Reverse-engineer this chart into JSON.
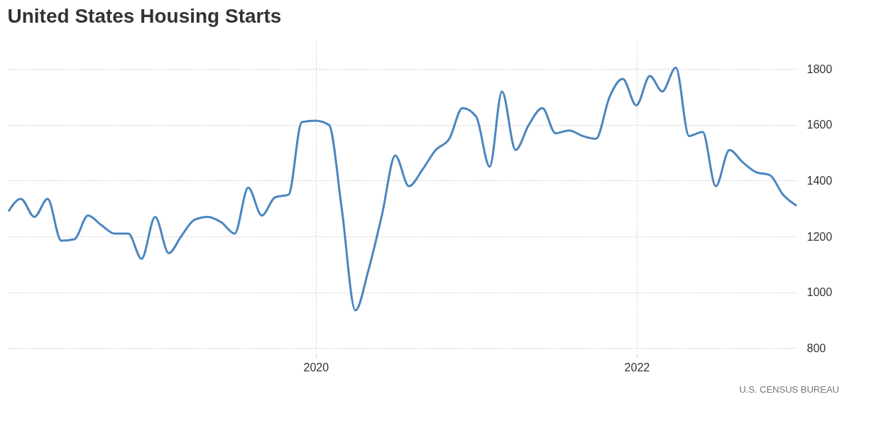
{
  "chart_data": {
    "type": "line",
    "title": "United States Housing Starts",
    "x": [
      "2018-01-31",
      "2018-02-28",
      "2018-03-31",
      "2018-04-30",
      "2018-05-31",
      "2018-06-30",
      "2018-07-31",
      "2018-08-31",
      "2018-09-30",
      "2018-10-31",
      "2018-11-30",
      "2018-12-31",
      "2019-01-31",
      "2019-02-28",
      "2019-03-31",
      "2019-04-30",
      "2019-05-31",
      "2019-06-30",
      "2019-07-31",
      "2019-08-31",
      "2019-09-30",
      "2019-10-31",
      "2019-11-30",
      "2019-12-31",
      "2020-01-31",
      "2020-02-29",
      "2020-03-31",
      "2020-04-30",
      "2020-05-31",
      "2020-06-30",
      "2020-07-31",
      "2020-08-31",
      "2020-09-30",
      "2020-10-31",
      "2020-11-30",
      "2020-12-31",
      "2021-01-31",
      "2021-02-28",
      "2021-03-31",
      "2021-04-30",
      "2021-05-31",
      "2021-06-30",
      "2021-07-31",
      "2021-08-31",
      "2021-09-30",
      "2021-10-31",
      "2021-11-30",
      "2021-12-31",
      "2022-01-31",
      "2022-02-28",
      "2022-03-31",
      "2022-04-30",
      "2022-05-31",
      "2022-06-30",
      "2022-07-31",
      "2022-08-31",
      "2022-09-30",
      "2022-10-31",
      "2022-11-30",
      "2022-12-31"
    ],
    "series": [
      {
        "color": "#4a86bd",
        "values": [
          1290,
          1335,
          1270,
          1335,
          1185,
          1190,
          1275,
          1240,
          1210,
          1210,
          1120,
          1270,
          1140,
          1200,
          1260,
          1270,
          1250,
          1210,
          1375,
          1275,
          1340,
          1350,
          1610,
          1615,
          1600,
          1300,
          935,
          1080,
          1280,
          1490,
          1380,
          1440,
          1510,
          1550,
          1660,
          1630,
          1450,
          1720,
          1510,
          1600,
          1660,
          1570,
          1580,
          1560,
          1550,
          1700,
          1765,
          1670,
          1775,
          1720,
          1805,
          1560,
          1575,
          1380,
          1510,
          1465,
          1430,
          1420,
          1350,
          1310
        ]
      }
    ],
    "xlim": [
      "2018-01-31",
      "2022-12-31"
    ],
    "xticks": [
      "2020",
      "2022"
    ],
    "ylim": [
      780,
      1900
    ],
    "yticks": [
      800,
      1000,
      1200,
      1400,
      1600,
      1800
    ],
    "grid": true,
    "marker": "none",
    "line_style": "solid",
    "annotations": [
      "U.S. CENSUS BUREAU"
    ]
  }
}
